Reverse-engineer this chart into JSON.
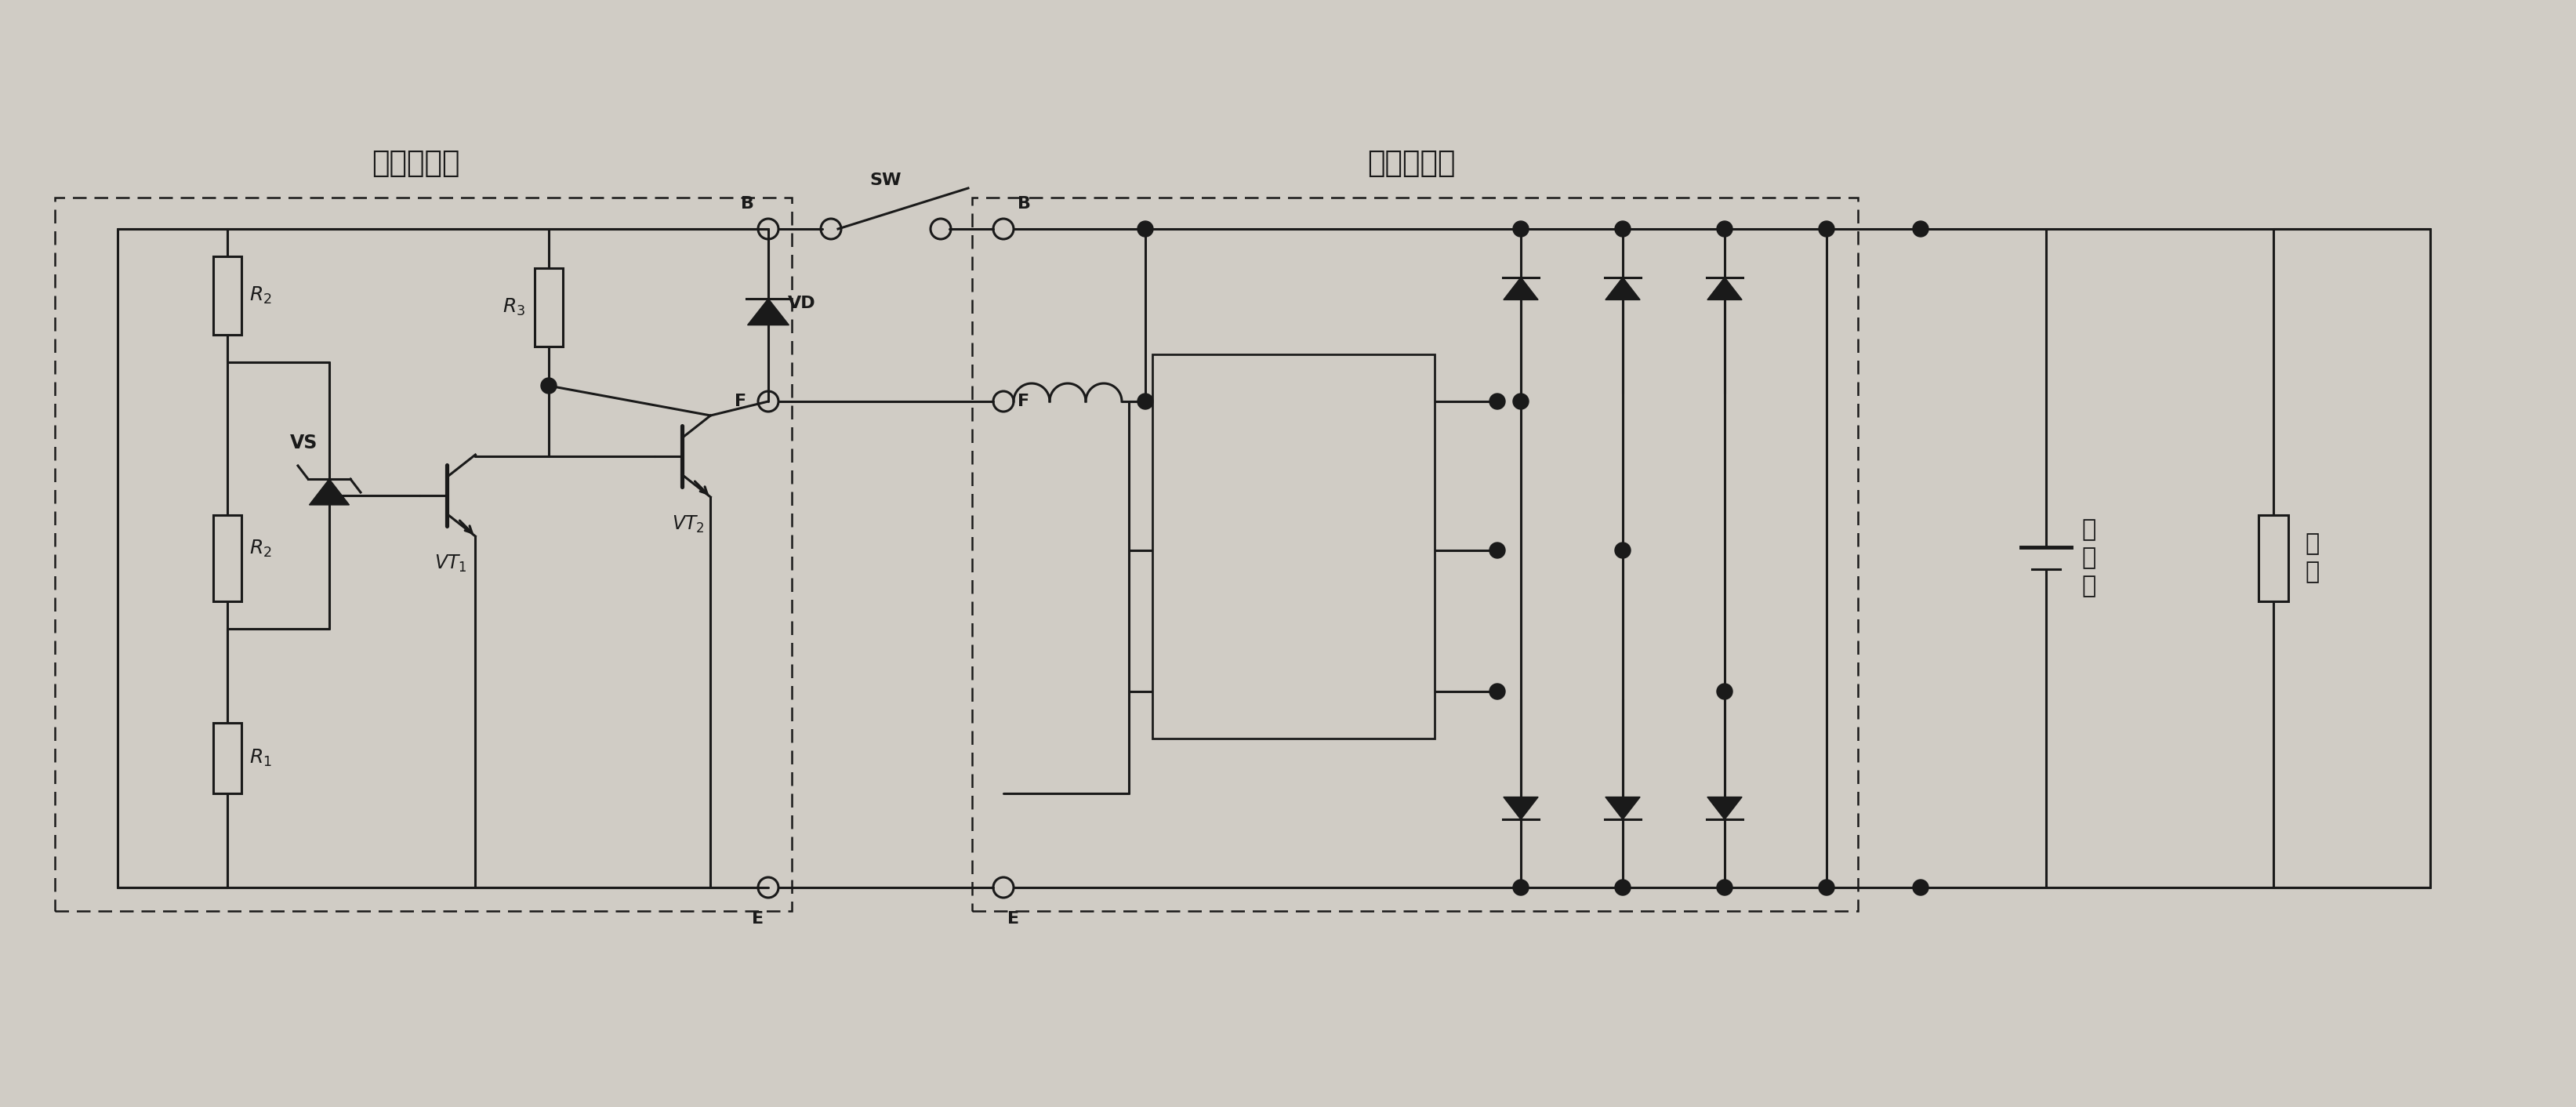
{
  "bg": "#d0ccc5",
  "lc": "#1a1a1a",
  "lw": 2.2,
  "title_vr": "电压调节器",
  "title_alt": "交流发电机",
  "label_B": "B",
  "label_SW": "SW",
  "label_F": "F",
  "label_E": "E",
  "label_R1": "R₁",
  "label_R2": "R₂",
  "label_R3": "R₃",
  "label_VS": "VS",
  "label_VT1": "VT₁",
  "label_VT2": "VT₂",
  "label_VD": "VD",
  "label_battery": "蓄\n电\n池",
  "label_load": "负\n载"
}
